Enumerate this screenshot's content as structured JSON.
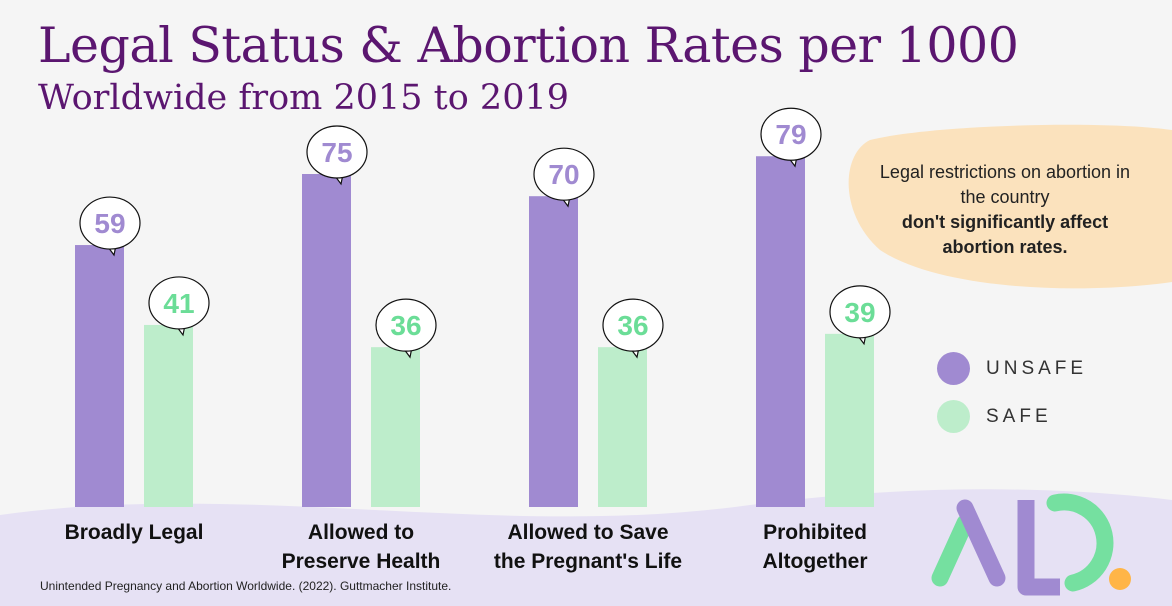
{
  "title": "Legal Status & Abortion Rates per 1000",
  "subtitle": "Worldwide from 2015 to 2019",
  "note": {
    "line1": "Legal restrictions on abortion in the country",
    "bold": "don't significantly affect abortion rates."
  },
  "source": "Unintended Pregnancy and Abortion Worldwide. (2022). Guttmacher Institute.",
  "logo_text": "AD.",
  "colors": {
    "unsafe": "#a08ad1",
    "safe": "#bdedcb",
    "safe_label": "#6bdd97",
    "title": "#5b1670",
    "note_bg": "#fbe2bd",
    "ground": "#e6e1f4",
    "logo_dot": "#ffb547"
  },
  "chart_data": {
    "type": "bar",
    "categories": [
      "Broadly Legal",
      "Allowed to Preserve Health",
      "Allowed to Save the Pregnant's Life",
      "Prohibited Altogether"
    ],
    "category_lines": [
      [
        "Broadly Legal"
      ],
      [
        "Allowed to",
        "Preserve Health"
      ],
      [
        "Allowed to Save",
        "the Pregnant's Life"
      ],
      [
        "Prohibited",
        "Altogether"
      ]
    ],
    "series": [
      {
        "name": "UNSAFE",
        "values": [
          59,
          75,
          70,
          79
        ]
      },
      {
        "name": "SAFE",
        "values": [
          41,
          36,
          36,
          39
        ]
      }
    ],
    "ylim": [
      0,
      80
    ],
    "grid": false,
    "legend": "right"
  }
}
